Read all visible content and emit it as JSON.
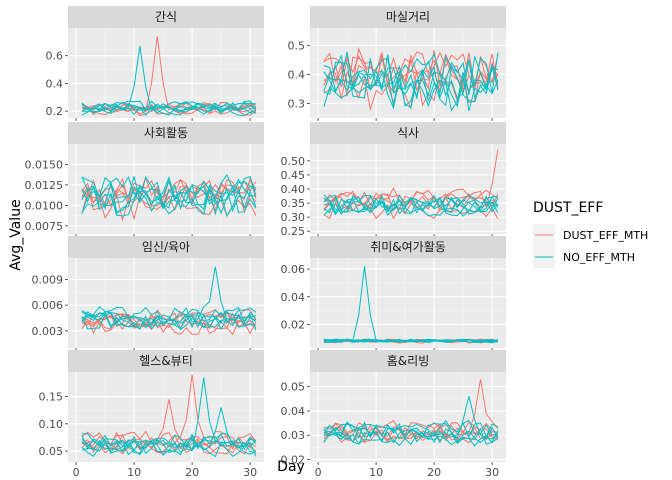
{
  "chart_data": {
    "type": "line",
    "xlabel": "Day",
    "ylabel": "Avg_Value",
    "xlim": [
      0,
      31
    ],
    "x_ticks": [
      0,
      10,
      20,
      30
    ],
    "grid": true,
    "legend": {
      "title": "DUST_EFF",
      "placement": "right",
      "entries": [
        {
          "name": "DUST_EFF_MTH",
          "color": "#F8766D"
        },
        {
          "name": "NO_EFF_MTH",
          "color": "#00BFC4"
        }
      ]
    },
    "panels": [
      {
        "title": "간식",
        "ylim": [
          0.15,
          0.8
        ],
        "y_ticks": [
          0.2,
          0.4,
          0.6
        ],
        "y_tick_labels": [
          "0.2",
          "0.4",
          "0.6"
        ],
        "base": 0.22,
        "amp": 0.04,
        "red_lines": 5,
        "cyan_lines": 6,
        "spikes": [
          {
            "group": "NO_EFF_MTH",
            "day": 11,
            "value": 0.67
          },
          {
            "group": "DUST_EFF_MTH",
            "day": 14,
            "value": 0.74
          }
        ]
      },
      {
        "title": "마실거리",
        "ylim": [
          0.25,
          0.56
        ],
        "y_ticks": [
          0.3,
          0.4,
          0.5
        ],
        "y_tick_labels": [
          "0.3",
          "0.4",
          "0.5"
        ],
        "base": 0.39,
        "amp": 0.09,
        "red_lines": 5,
        "cyan_lines": 6,
        "spikes": []
      },
      {
        "title": "사회활동",
        "ylim": [
          0.0065,
          0.0175
        ],
        "y_ticks": [
          0.0075,
          0.01,
          0.0125,
          0.015
        ],
        "y_tick_labels": [
          "0.0075",
          "0.0100",
          "0.0125",
          "0.0150"
        ],
        "base": 0.0112,
        "amp": 0.0022,
        "red_lines": 5,
        "cyan_lines": 6,
        "spikes": []
      },
      {
        "title": "식사",
        "ylim": [
          0.24,
          0.56
        ],
        "y_ticks": [
          0.25,
          0.3,
          0.35,
          0.4,
          0.45,
          0.5
        ],
        "y_tick_labels": [
          "0.25",
          "0.30",
          "0.35",
          "0.40",
          "0.45",
          "0.50"
        ],
        "base": 0.35,
        "amp": 0.04,
        "red_lines": 5,
        "cyan_lines": 6,
        "spikes": [
          {
            "group": "DUST_EFF_MTH",
            "day": 31,
            "value": 0.54
          }
        ]
      },
      {
        "title": "임신/육아",
        "ylim": [
          0.001,
          0.0115
        ],
        "y_ticks": [
          0.003,
          0.006,
          0.009
        ],
        "y_tick_labels": [
          "0.003",
          "0.006",
          "0.009"
        ],
        "base": 0.0042,
        "amp": 0.0012,
        "red_lines": 5,
        "cyan_lines": 6,
        "spikes": [
          {
            "group": "NO_EFF_MTH",
            "day": 24,
            "value": 0.0105
          }
        ]
      },
      {
        "title": "취미&여가활동",
        "ylim": [
          0.003,
          0.068
        ],
        "y_ticks": [
          0.02,
          0.04,
          0.06
        ],
        "y_tick_labels": [
          "0.02",
          "0.04",
          "0.06"
        ],
        "base": 0.008,
        "amp": 0.0012,
        "red_lines": 5,
        "cyan_lines": 6,
        "spikes": [
          {
            "group": "NO_EFF_MTH",
            "day": 8,
            "value": 0.062
          }
        ]
      },
      {
        "title": "헬스&뷰티",
        "ylim": [
          0.03,
          0.195
        ],
        "y_ticks": [
          0.05,
          0.1,
          0.15
        ],
        "y_tick_labels": [
          "0.05",
          "0.10",
          "0.15"
        ],
        "base": 0.062,
        "amp": 0.018,
        "red_lines": 5,
        "cyan_lines": 6,
        "spikes": [
          {
            "group": "DUST_EFF_MTH",
            "day": 20,
            "value": 0.19
          },
          {
            "group": "NO_EFF_MTH",
            "day": 22,
            "value": 0.185
          },
          {
            "group": "DUST_EFF_MTH",
            "day": 16,
            "value": 0.145
          },
          {
            "group": "NO_EFF_MTH",
            "day": 25,
            "value": 0.13
          }
        ]
      },
      {
        "title": "홈&리빙",
        "ylim": [
          0.019,
          0.056
        ],
        "y_ticks": [
          0.02,
          0.03,
          0.04,
          0.05
        ],
        "y_tick_labels": [
          "0.02",
          "0.03",
          "0.04",
          "0.05"
        ],
        "base": 0.031,
        "amp": 0.004,
        "red_lines": 5,
        "cyan_lines": 6,
        "spikes": [
          {
            "group": "DUST_EFF_MTH",
            "day": 28,
            "value": 0.053
          },
          {
            "group": "NO_EFF_MTH",
            "day": 26,
            "value": 0.046
          }
        ]
      }
    ]
  }
}
